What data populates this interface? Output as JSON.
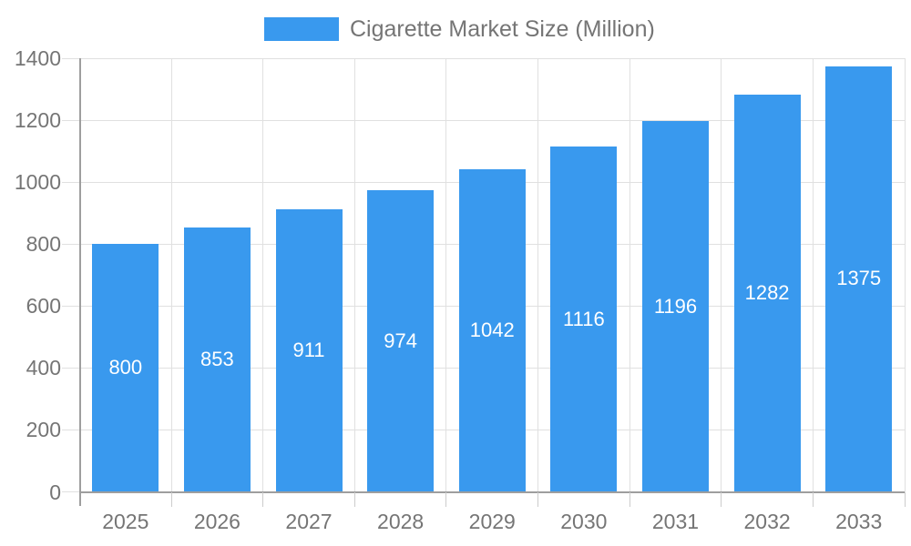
{
  "chart_data": {
    "type": "bar",
    "title": "Cigarette Market Size (Million)",
    "categories": [
      "2025",
      "2026",
      "2027",
      "2028",
      "2029",
      "2030",
      "2031",
      "2032",
      "2033"
    ],
    "values": [
      800,
      853,
      911,
      974,
      1042,
      1116,
      1196,
      1282,
      1375
    ],
    "series": [
      {
        "name": "Cigarette Market Size (Million)",
        "values": [
          800,
          853,
          911,
          974,
          1042,
          1116,
          1196,
          1282,
          1375
        ]
      }
    ],
    "xlabel": "",
    "ylabel": "",
    "ylim": [
      0,
      1400
    ],
    "ytick_interval": 200,
    "ytick_labels": [
      "0",
      "200",
      "400",
      "600",
      "800",
      "1000",
      "1200",
      "1400"
    ],
    "legend_position": "top",
    "grid": true,
    "value_label_placement": "centered-inside-bars",
    "colors": {
      "bar": "#3999EE",
      "grid": "#E0E0E0",
      "axis_line": "#9E9E9E",
      "x_tick": "#CCCCCC",
      "y_tick": "#E0E0E0",
      "axis_text": "#757575",
      "value_label_text": "#FFFFFF",
      "background": "#FFFFFF"
    }
  }
}
